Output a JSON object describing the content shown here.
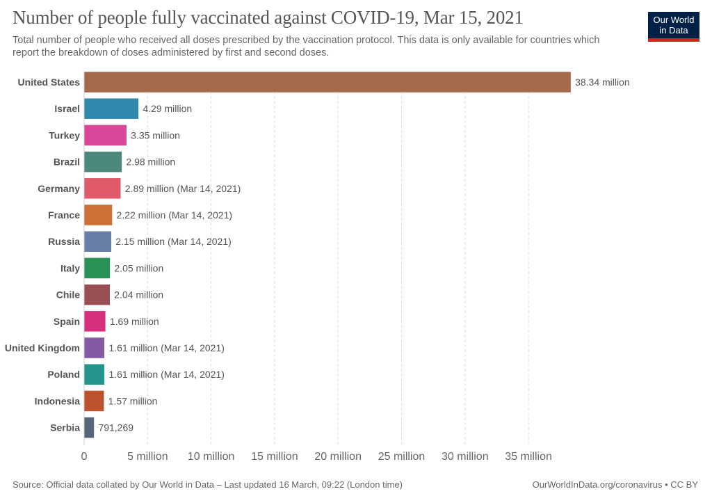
{
  "header": {
    "title": "Number of people fully vaccinated against COVID-19, Mar 15, 2021",
    "subtitle": "Total number of people who received all doses prescribed by the vaccination protocol. This data is only available for countries which report the breakdown of doses administered by first and second doses.",
    "logo_line1": "Our World",
    "logo_line2": "in Data"
  },
  "footer": {
    "source": "Source: Official data collated by Our World in Data – Last updated 16 March, 09:22 (London time)",
    "credit": "OurWorldInData.org/coronavirus • CC BY"
  },
  "chart_data": {
    "type": "bar",
    "orientation": "horizontal",
    "title": "Number of people fully vaccinated against COVID-19, Mar 15, 2021",
    "xlabel": "",
    "ylabel": "",
    "xlim": [
      0,
      38340000
    ],
    "grid": "vertical-dashed",
    "x_ticks": [
      0,
      5000000,
      10000000,
      15000000,
      20000000,
      25000000,
      30000000,
      35000000
    ],
    "x_tick_labels": [
      "0",
      "5 million",
      "10 million",
      "15 million",
      "20 million",
      "25 million",
      "30 million",
      "35 million"
    ],
    "categories": [
      "United States",
      "Israel",
      "Turkey",
      "Brazil",
      "Germany",
      "France",
      "Russia",
      "Italy",
      "Chile",
      "Spain",
      "United Kingdom",
      "Poland",
      "Indonesia",
      "Serbia"
    ],
    "values": [
      38340000,
      4290000,
      3350000,
      2980000,
      2890000,
      2220000,
      2150000,
      2050000,
      2040000,
      1690000,
      1610000,
      1610000,
      1570000,
      791269
    ],
    "labels": [
      "38.34 million",
      "4.29 million",
      "3.35 million",
      "2.98 million",
      "2.89 million (Mar 14, 2021)",
      "2.22 million (Mar 14, 2021)",
      "2.15 million (Mar 14, 2021)",
      "2.05 million",
      "2.04 million",
      "1.69 million",
      "1.61 million (Mar 14, 2021)",
      "1.61 million (Mar 14, 2021)",
      "1.57 million",
      "791,269"
    ],
    "colors": [
      "#a5694b",
      "#3188ac",
      "#d8479a",
      "#4c887c",
      "#df5b6b",
      "#cd7038",
      "#6a7fa8",
      "#2a9257",
      "#9a4f55",
      "#d6307e",
      "#845aa2",
      "#25958c",
      "#bd532c",
      "#58667b"
    ]
  }
}
